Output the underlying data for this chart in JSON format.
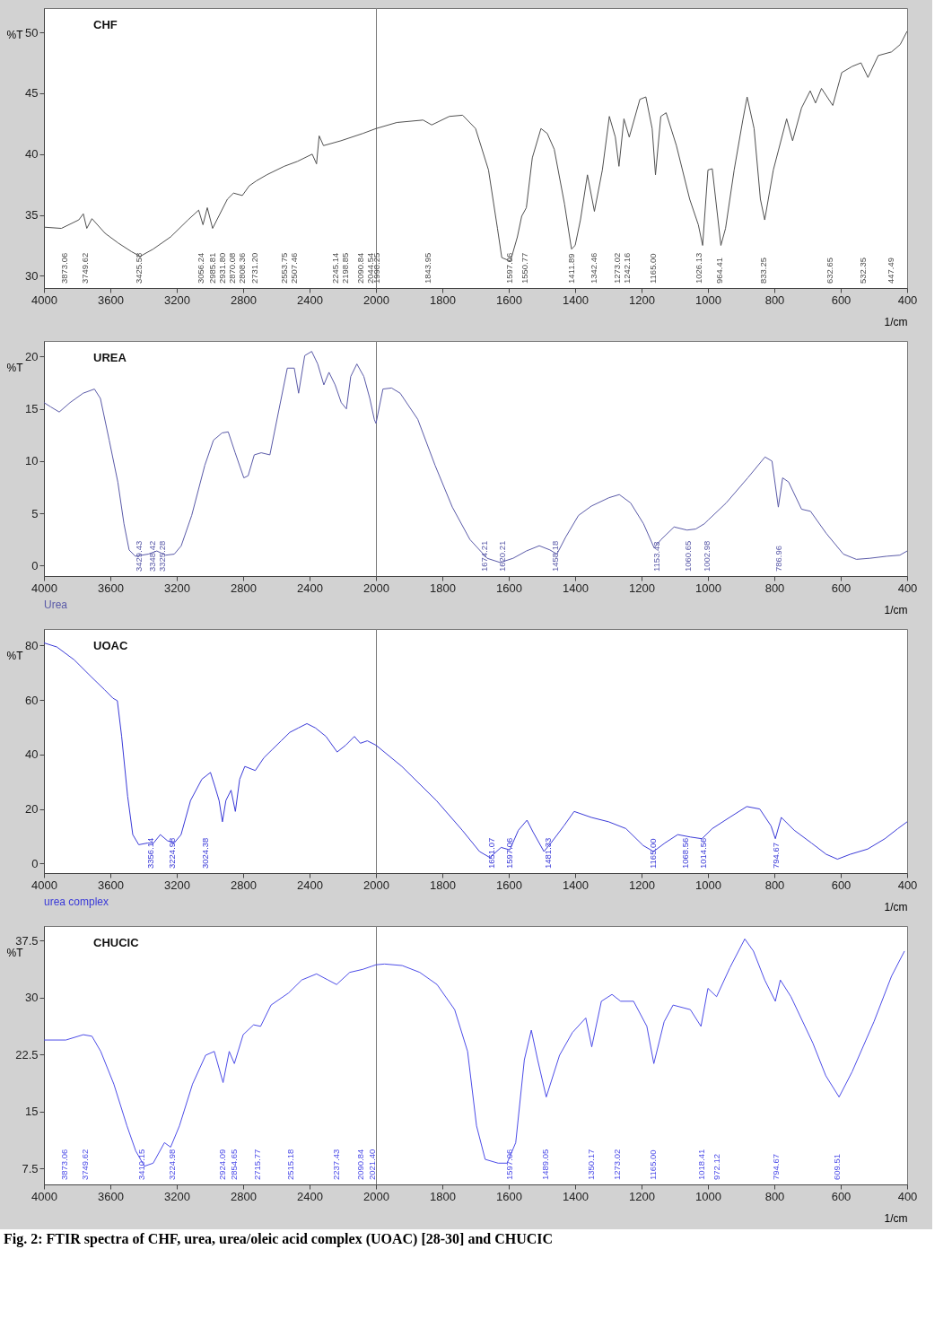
{
  "chart_data": [
    {
      "type": "line",
      "title": "CHF",
      "ylabel": "%T",
      "xlim": [
        4000,
        2000
      ],
      "xticks": [
        4000,
        3600,
        3200,
        2800,
        2400
      ],
      "ylim": [
        29,
        52
      ],
      "yticks": [
        30,
        35,
        40,
        45,
        50
      ],
      "x": [
        4000,
        3895,
        3790,
        3763,
        3742,
        3711,
        3632,
        3553,
        3474,
        3421,
        3342,
        3237,
        3132,
        3068,
        3042,
        3016,
        2984,
        2947,
        2895,
        2858,
        2805,
        2763,
        2721,
        2658,
        2553,
        2474,
        2384,
        2358,
        2342,
        2316,
        2211,
        2079,
        2000
      ],
      "series": [
        {
          "color": "#505050",
          "values": [
            34.0,
            33.9,
            34.6,
            35.1,
            33.9,
            34.7,
            33.5,
            32.7,
            32.0,
            31.6,
            32.2,
            33.2,
            34.6,
            35.4,
            34.2,
            35.6,
            33.9,
            34.9,
            36.3,
            36.8,
            36.6,
            37.4,
            37.8,
            38.3,
            39.0,
            39.4,
            40.0,
            39.2,
            41.5,
            40.7,
            41.1,
            41.7,
            42.1
          ]
        }
      ],
      "annotations": [
        "3873.06",
        "3749.62",
        "3425.58",
        "3056.24",
        "2985.81",
        "2931.80",
        "2870.08",
        "2808.36",
        "2731.20",
        "2553.75",
        "2507.46",
        "2245.14",
        "2198.85",
        "2090.84",
        "2044.54"
      ]
    },
    {
      "type": "line",
      "xlabel": "1/cm",
      "xlim": [
        2000,
        400
      ],
      "xticks": [
        2000,
        1800,
        1600,
        1400,
        1200,
        1000,
        800,
        600,
        400
      ],
      "ylim": [
        29,
        52
      ],
      "tick_labels": "x",
      "x": [
        2000,
        1937,
        1858,
        1832,
        1779,
        1739,
        1700,
        1661,
        1634,
        1621,
        1595,
        1574,
        1561,
        1547,
        1529,
        1503,
        1484,
        1463,
        1432,
        1411,
        1400,
        1384,
        1363,
        1342,
        1318,
        1297,
        1279,
        1268,
        1253,
        1237,
        1205,
        1187,
        1168,
        1158,
        1142,
        1126,
        1095,
        1055,
        1029,
        1016,
        1000,
        987,
        961,
        947,
        921,
        895,
        882,
        861,
        842,
        829,
        803,
        763,
        745,
        718,
        692,
        676,
        658,
        624,
        597,
        566,
        539,
        518,
        487,
        447,
        421,
        400
      ],
      "series": [
        {
          "color": "#505050",
          "values": [
            42.1,
            42.6,
            42.8,
            42.4,
            43.1,
            43.2,
            42.1,
            38.7,
            33.9,
            31.5,
            31.2,
            33.2,
            34.9,
            35.6,
            39.7,
            42.1,
            41.7,
            40.4,
            35.9,
            32.2,
            32.5,
            34.6,
            38.3,
            35.3,
            38.7,
            43.1,
            41.4,
            39.0,
            42.9,
            41.4,
            44.5,
            44.7,
            42.1,
            38.3,
            43.1,
            43.4,
            40.7,
            36.3,
            34.2,
            32.5,
            38.7,
            38.8,
            32.5,
            33.9,
            38.7,
            42.8,
            44.7,
            42.1,
            36.3,
            34.6,
            38.7,
            42.9,
            41.1,
            43.8,
            45.2,
            44.2,
            45.4,
            44.0,
            46.7,
            47.2,
            47.5,
            46.3,
            48.1,
            48.4,
            49.0,
            50.1
          ]
        }
      ],
      "annotations": [
        "1998.25",
        "1843.95",
        "1597.06",
        "1550.77",
        "1411.89",
        "1342.46",
        "1273.02",
        "1242.16",
        "1165.00",
        "1026.13",
        "964.41",
        "833.25",
        "632.65",
        "532.35",
        "447.49"
      ]
    },
    {
      "type": "line",
      "title": "UREA",
      "ylabel": "%T",
      "xlim": [
        4000,
        2000
      ],
      "xticks": [
        4000,
        3600,
        3200,
        2800,
        2400
      ],
      "ylim": [
        -1,
        21.5
      ],
      "yticks": [
        0,
        5,
        10,
        15,
        20
      ],
      "x": [
        4000,
        3960,
        3908,
        3843,
        3764,
        3696,
        3660,
        3607,
        3555,
        3518,
        3487,
        3450,
        3372,
        3320,
        3267,
        3215,
        3173,
        3110,
        3031,
        2979,
        2927,
        2890,
        2848,
        2796,
        2770,
        2733,
        2691,
        2639,
        2586,
        2534,
        2492,
        2466,
        2429,
        2387,
        2351,
        2314,
        2283,
        2246,
        2209,
        2178,
        2152,
        2115,
        2073,
        2037,
        2010,
        2000
      ],
      "series": [
        {
          "color": "#5a5aa8",
          "values": [
            15.6,
            15.2,
            14.7,
            15.6,
            16.5,
            16.9,
            16.0,
            12.0,
            8.0,
            4.0,
            1.5,
            0.9,
            1.1,
            1.4,
            1.0,
            1.1,
            1.9,
            4.8,
            9.6,
            12.0,
            12.7,
            12.8,
            10.8,
            8.4,
            8.6,
            10.6,
            10.8,
            10.6,
            14.8,
            18.9,
            18.9,
            16.5,
            20.1,
            20.5,
            19.3,
            17.3,
            18.5,
            17.3,
            15.6,
            15.0,
            18.1,
            19.3,
            18.1,
            16.0,
            14.0,
            13.6
          ]
        }
      ],
      "annotations": [
        "3429.43",
        "3348.42",
        "3325.28",
        "Urea"
      ]
    },
    {
      "type": "line",
      "xlabel": "1/cm",
      "xlim": [
        2000,
        400
      ],
      "xticks": [
        2000,
        1800,
        1600,
        1400,
        1200,
        1000,
        800,
        600,
        400
      ],
      "ylim": [
        -1,
        21.5
      ],
      "tick_labels": "x",
      "x": [
        2000,
        1979,
        1953,
        1927,
        1874,
        1822,
        1770,
        1717,
        1665,
        1626,
        1587,
        1547,
        1508,
        1476,
        1455,
        1429,
        1390,
        1351,
        1298,
        1267,
        1233,
        1194,
        1162,
        1141,
        1102,
        1063,
        1037,
        1011,
        998,
        945,
        880,
        828,
        807,
        788,
        775,
        757,
        718,
        691,
        644,
        592,
        553,
        513,
        461,
        422,
        400
      ],
      "series": [
        {
          "color": "#5a5aa8",
          "values": [
            13.6,
            16.9,
            17.0,
            16.5,
            14.0,
            9.6,
            5.6,
            2.5,
            0.7,
            0.3,
            0.7,
            1.4,
            1.9,
            1.5,
            1.1,
            2.7,
            4.8,
            5.7,
            6.5,
            6.8,
            6.0,
            4.0,
            1.7,
            2.5,
            3.7,
            3.4,
            3.5,
            4.0,
            4.4,
            6.0,
            8.4,
            10.4,
            10.0,
            5.6,
            8.4,
            8.0,
            5.4,
            5.2,
            3.1,
            1.1,
            0.6,
            0.7,
            0.9,
            1.0,
            1.4
          ]
        }
      ],
      "annotations": [
        "1674.21",
        "1620.21",
        "1458.18",
        "1153.43",
        "1060.65",
        "1002.98",
        "786.96"
      ]
    },
    {
      "type": "line",
      "title": "UOAC",
      "ylabel": "%T",
      "xlim": [
        4000,
        2000
      ],
      "xticks": [
        4000,
        3600,
        3200,
        2800,
        2400
      ],
      "ylim": [
        -3.5,
        86
      ],
      "yticks": [
        0,
        20,
        40,
        60,
        80
      ],
      "x": [
        4000,
        3922,
        3818,
        3714,
        3636,
        3584,
        3558,
        3532,
        3496,
        3465,
        3429,
        3377,
        3340,
        3299,
        3257,
        3216,
        3174,
        3117,
        3049,
        2997,
        2971,
        2945,
        2925,
        2904,
        2873,
        2847,
        2821,
        2790,
        2727,
        2675,
        2623,
        2571,
        2519,
        2468,
        2416,
        2364,
        2301,
        2234,
        2182,
        2130,
        2094,
        2052,
        2000
      ],
      "series": [
        {
          "color": "#3a3ad8",
          "values": [
            80.9,
            79.4,
            74.7,
            68.4,
            63.8,
            60.6,
            59.7,
            46.6,
            24.7,
            10.6,
            6.9,
            7.5,
            7.5,
            10.6,
            8.4,
            7.5,
            10.6,
            23.1,
            30.9,
            33.4,
            28.4,
            23.1,
            15.3,
            23.1,
            26.9,
            19.1,
            30.9,
            35.6,
            34.1,
            38.8,
            41.9,
            45.0,
            48.1,
            49.7,
            51.3,
            49.7,
            46.6,
            40.9,
            43.4,
            46.6,
            44.1,
            45.0,
            43.4
          ]
        }
      ],
      "annotations": [
        "3356.14",
        "3224.98",
        "3024.38",
        "urea complex"
      ]
    },
    {
      "type": "line",
      "xlabel": "1/cm",
      "xlim": [
        2000,
        400
      ],
      "xticks": [
        2000,
        1800,
        1600,
        1400,
        1200,
        1000,
        800,
        600,
        400
      ],
      "ylim": [
        -3.5,
        86
      ],
      "tick_labels": "x",
      "x": [
        2000,
        1922,
        1818,
        1740,
        1688,
        1657,
        1623,
        1597,
        1571,
        1545,
        1527,
        1494,
        1473,
        1434,
        1403,
        1351,
        1299,
        1247,
        1195,
        1164,
        1130,
        1091,
        1052,
        1018,
        987,
        935,
        883,
        844,
        810,
        797,
        779,
        740,
        688,
        644,
        610,
        571,
        519,
        467,
        428,
        400
      ],
      "series": [
        {
          "color": "#3a3ad8",
          "values": [
            43.4,
            35.6,
            23.1,
            12.2,
            4.4,
            2.2,
            5.9,
            5.0,
            12.2,
            15.9,
            11.6,
            4.4,
            7.5,
            13.8,
            19.1,
            16.9,
            15.3,
            12.8,
            6.6,
            4.4,
            7.5,
            10.6,
            9.7,
            9.1,
            12.8,
            16.9,
            20.9,
            20.0,
            13.8,
            9.1,
            16.9,
            12.2,
            7.5,
            3.4,
            1.6,
            3.4,
            5.3,
            9.1,
            12.8,
            15.3
          ]
        }
      ],
      "annotations": [
        "1651.07",
        "1597.06",
        "1481.33",
        "1165.00",
        "1068.56",
        "1014.56",
        "794.67"
      ]
    },
    {
      "type": "line",
      "title": "CHUCIC",
      "ylabel": "%T",
      "xlim": [
        4000,
        2000
      ],
      "xticks": [
        4000,
        3600,
        3200,
        2800,
        2400
      ],
      "ylim": [
        5.4,
        39.4
      ],
      "yticks": [
        7.5,
        15,
        22.5,
        30,
        37.5
      ],
      "x": [
        4000,
        3868,
        3763,
        3711,
        3658,
        3579,
        3500,
        3447,
        3395,
        3342,
        3274,
        3237,
        3184,
        3105,
        3026,
        2974,
        2921,
        2884,
        2853,
        2800,
        2737,
        2695,
        2632,
        2526,
        2447,
        2358,
        2289,
        2237,
        2158,
        2079,
        2026,
        2000
      ],
      "series": [
        {
          "color": "#4d4de8",
          "values": [
            24.4,
            24.4,
            25.1,
            24.9,
            22.9,
            18.6,
            13.1,
            9.8,
            7.8,
            8.2,
            10.9,
            10.3,
            13.1,
            18.6,
            22.4,
            22.9,
            18.8,
            22.9,
            21.3,
            25.1,
            26.4,
            26.2,
            29.0,
            30.6,
            32.3,
            33.1,
            32.3,
            31.7,
            33.3,
            33.7,
            34.1,
            34.3
          ]
        }
      ],
      "annotations": [
        "3873.06",
        "3749.62",
        "3410.15",
        "3224.98",
        "2924.09",
        "2854.65",
        "2715.77",
        "2515.18",
        "2237.43",
        "2090.84",
        "2021.40"
      ]
    },
    {
      "type": "line",
      "xlabel": "1/cm",
      "xlim": [
        2000,
        400
      ],
      "xticks": [
        2000,
        1800,
        1600,
        1400,
        1200,
        1000,
        800,
        600,
        400
      ],
      "ylim": [
        5.4,
        39.4
      ],
      "tick_labels": "x",
      "x": [
        2000,
        1974,
        1921,
        1868,
        1816,
        1763,
        1724,
        1697,
        1671,
        1632,
        1605,
        1579,
        1553,
        1532,
        1513,
        1487,
        1447,
        1408,
        1368,
        1350,
        1321,
        1289,
        1263,
        1224,
        1184,
        1163,
        1132,
        1105,
        1053,
        1021,
        1000,
        974,
        934,
        889,
        863,
        829,
        797,
        782,
        750,
        684,
        645,
        605,
        566,
        500,
        447,
        408
      ],
      "series": [
        {
          "color": "#4d4de8",
          "values": [
            34.3,
            34.4,
            34.2,
            33.3,
            31.7,
            28.4,
            22.9,
            13.1,
            8.7,
            8.2,
            8.2,
            10.9,
            21.8,
            25.7,
            21.8,
            16.9,
            22.4,
            25.4,
            27.3,
            23.5,
            29.5,
            30.4,
            29.5,
            29.5,
            26.2,
            21.3,
            26.8,
            29.0,
            28.4,
            26.2,
            31.2,
            30.1,
            33.9,
            37.7,
            36.1,
            32.3,
            29.5,
            32.3,
            30.1,
            24.0,
            19.7,
            16.9,
            20.2,
            26.8,
            32.8,
            36.1
          ]
        }
      ],
      "annotations": [
        "1597.06",
        "1489.05",
        "1350.17",
        "1273.02",
        "1165.00",
        "1018.41",
        "972.12",
        "794.67",
        "609.51",
        "Fig. 2: FTIR spectra of CHF, urea, urea/oleic acid complex (UOAC) [28-30] and CHUCIC"
      ]
    }
  ]
}
